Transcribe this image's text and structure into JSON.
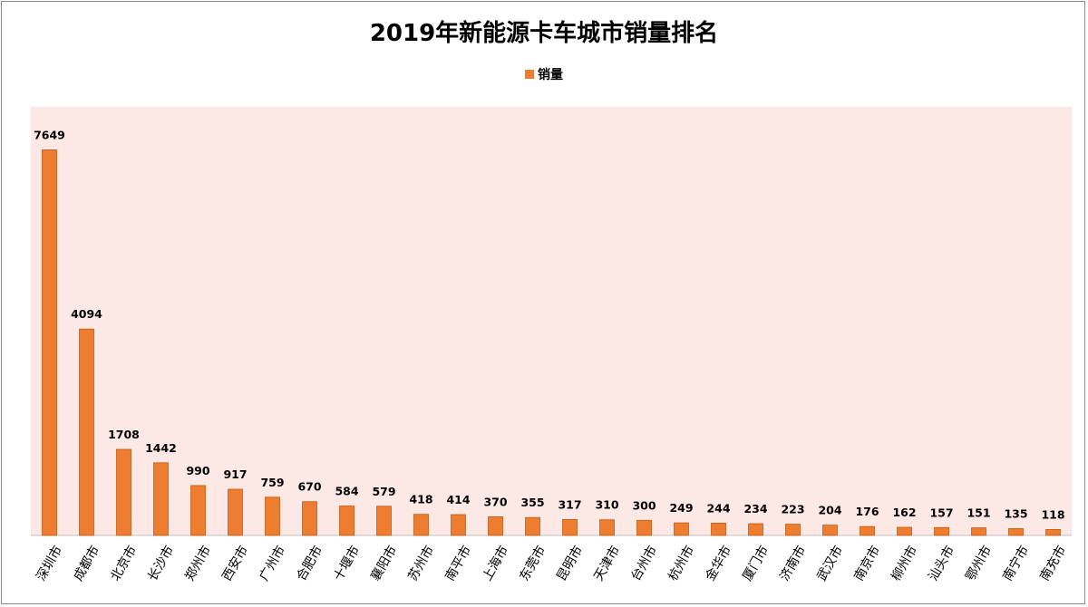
{
  "chart_data": {
    "type": "bar",
    "title": "2019年新能源卡车城市销量排名",
    "categories": [
      "深圳市",
      "成都市",
      "北京市",
      "长沙市",
      "郑州市",
      "西安市",
      "广州市",
      "合肥市",
      "十堰市",
      "襄阳市",
      "苏州市",
      "南平市",
      "上海市",
      "东莞市",
      "昆明市",
      "天津市",
      "台州市",
      "杭州市",
      "金华市",
      "厦门市",
      "济南市",
      "武汉市",
      "南京市",
      "柳州市",
      "汕头市",
      "鄂州市",
      "南宁市",
      "南充市"
    ],
    "series": [
      {
        "name": "销量",
        "values": [
          7649,
          4094,
          1708,
          1442,
          990,
          917,
          759,
          670,
          584,
          579,
          418,
          414,
          370,
          355,
          317,
          310,
          300,
          249,
          244,
          234,
          223,
          204,
          176,
          162,
          157,
          151,
          135,
          118
        ]
      }
    ],
    "xlabel": "",
    "ylabel": "",
    "ylim": [
      0,
      8500
    ],
    "grid": false,
    "legend_position": "top-center",
    "colors": {
      "bar": "#ED7D31",
      "bar_edge": "#C55A11",
      "plot_background": "#FCE9E5"
    }
  }
}
